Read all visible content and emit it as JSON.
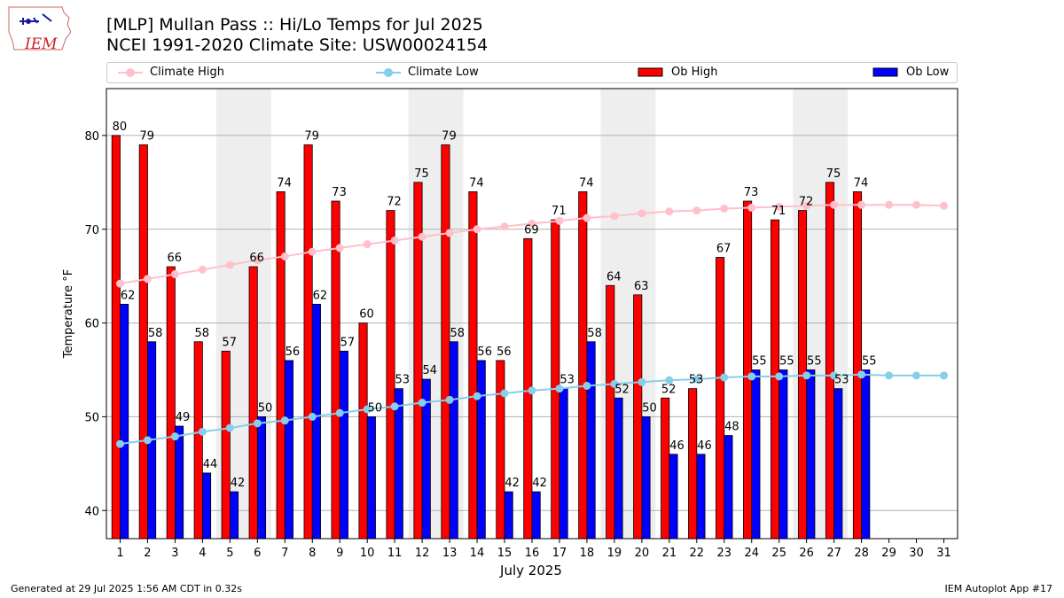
{
  "header": {
    "title_line1": "[MLP] Mullan Pass :: Hi/Lo Temps for Jul 2025",
    "title_line2": "NCEI 1991-2020 Climate Site: USW00024154",
    "logo_text": "IEM"
  },
  "footer": {
    "left": "Generated at 29 Jul 2025 1:56 AM CDT in 0.32s",
    "right": "IEM Autoplot App #17"
  },
  "colors": {
    "climate_high": "#ffc0cb",
    "climate_low": "#87ceeb",
    "ob_high": "#ff0000",
    "ob_low": "#0000ff",
    "weekend_shade": "#eeeeee",
    "grid": "#b0b0b0"
  },
  "chart_data": {
    "type": "bar",
    "title": "[MLP] Mullan Pass :: Hi/Lo Temps for Jul 2025",
    "xlabel": "July 2025",
    "ylabel": "Temperature °F",
    "ylim": [
      37,
      85
    ],
    "yticks": [
      40,
      50,
      60,
      70,
      80
    ],
    "grid": true,
    "legend_position": "top",
    "shaded_weekends": [
      [
        5,
        6
      ],
      [
        12,
        13
      ],
      [
        19,
        20
      ],
      [
        26,
        27
      ]
    ],
    "x": [
      1,
      2,
      3,
      4,
      5,
      6,
      7,
      8,
      9,
      10,
      11,
      12,
      13,
      14,
      15,
      16,
      17,
      18,
      19,
      20,
      21,
      22,
      23,
      24,
      25,
      26,
      27,
      28,
      29,
      30,
      31
    ],
    "series": [
      {
        "name": "Climate High",
        "kind": "line",
        "values": [
          64.2,
          64.7,
          65.2,
          65.7,
          66.2,
          66.7,
          67.1,
          67.6,
          68.0,
          68.4,
          68.8,
          69.2,
          69.6,
          70.0,
          70.3,
          70.6,
          70.9,
          71.2,
          71.4,
          71.7,
          71.9,
          72.0,
          72.2,
          72.3,
          72.4,
          72.5,
          72.6,
          72.6,
          72.6,
          72.6,
          72.5
        ]
      },
      {
        "name": "Climate Low",
        "kind": "line",
        "values": [
          47.1,
          47.5,
          47.9,
          48.4,
          48.8,
          49.3,
          49.6,
          50.0,
          50.4,
          50.8,
          51.1,
          51.5,
          51.8,
          52.2,
          52.5,
          52.8,
          53.0,
          53.3,
          53.5,
          53.7,
          53.9,
          54.0,
          54.2,
          54.3,
          54.3,
          54.4,
          54.4,
          54.5,
          54.4,
          54.4,
          54.4
        ]
      },
      {
        "name": "Ob High",
        "kind": "bar",
        "values": [
          80,
          79,
          66,
          58,
          57,
          66,
          74,
          79,
          73,
          60,
          72,
          75,
          79,
          74,
          56,
          69,
          71,
          74,
          64,
          63,
          52,
          53,
          67,
          73,
          71,
          72,
          75,
          74,
          null,
          null,
          null
        ]
      },
      {
        "name": "Ob Low",
        "kind": "bar",
        "values": [
          62,
          58,
          49,
          44,
          42,
          50,
          56,
          62,
          57,
          50,
          53,
          54,
          58,
          56,
          42,
          42,
          53,
          58,
          52,
          50,
          46,
          46,
          48,
          55,
          55,
          55,
          53,
          55,
          null,
          null,
          null
        ]
      }
    ]
  }
}
